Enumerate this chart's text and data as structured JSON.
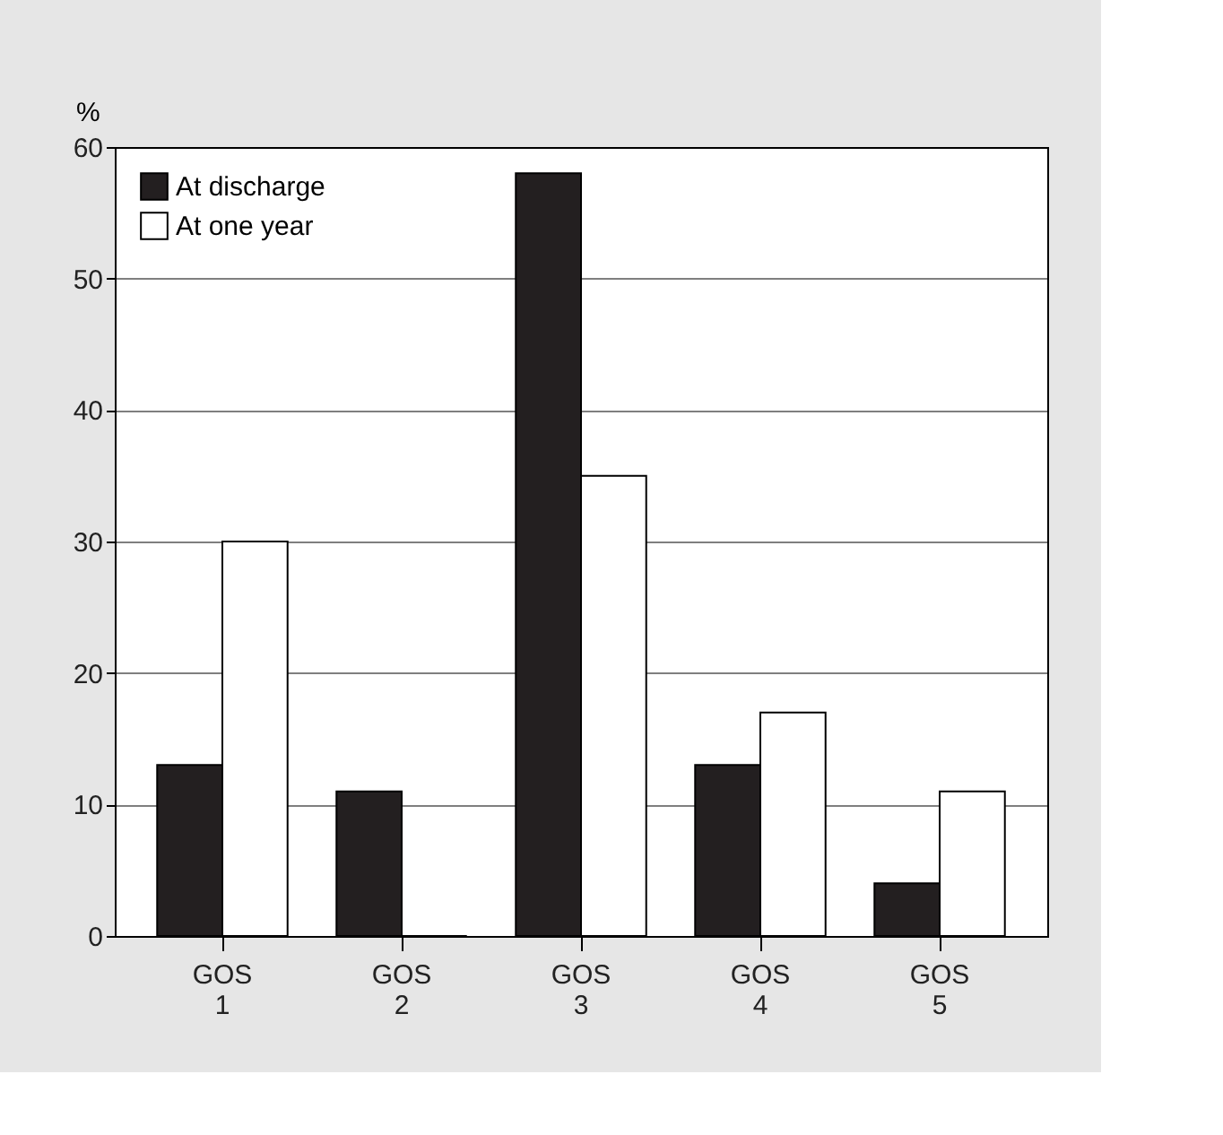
{
  "chart_data": {
    "type": "bar",
    "ylabel": "%",
    "categories": [
      "GOS 1",
      "GOS 2",
      "GOS 3",
      "GOS 4",
      "GOS 5"
    ],
    "series": [
      {
        "name": "At discharge",
        "color": "#231f20",
        "values": [
          13,
          11,
          58,
          13,
          4
        ]
      },
      {
        "name": "At one year",
        "color": "#ffffff",
        "values": [
          30,
          0,
          35,
          17,
          11
        ]
      }
    ],
    "ylim": [
      0,
      60
    ],
    "yticks": [
      0,
      10,
      20,
      30,
      40,
      50,
      60
    ],
    "grid": "y",
    "legend": "top left"
  }
}
